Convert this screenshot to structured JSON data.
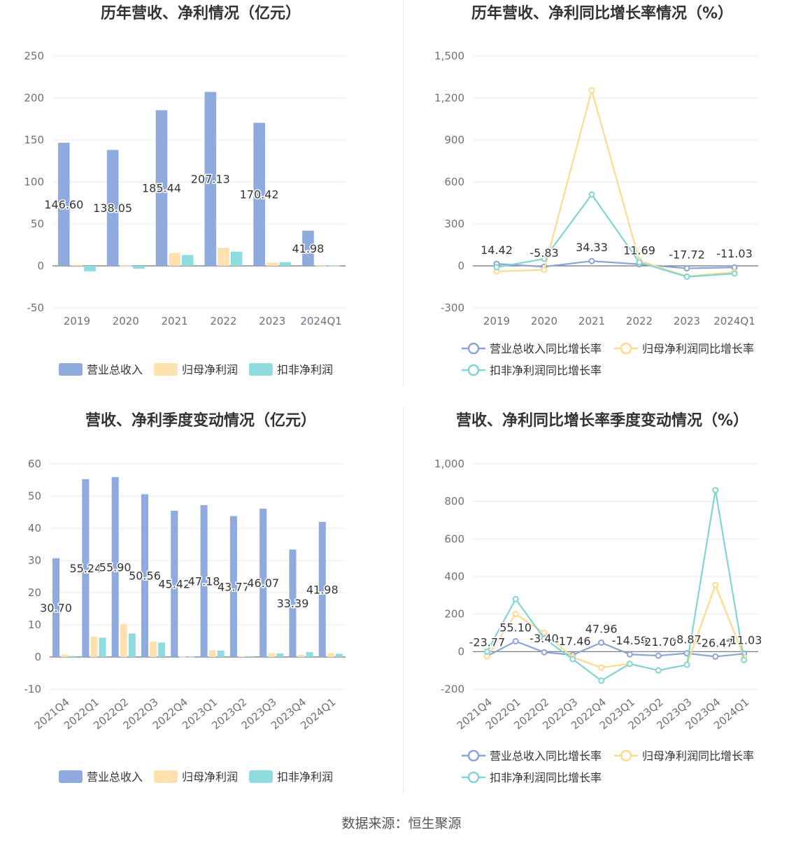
{
  "colors": {
    "revenue": "#8faadc",
    "parent_net": "#ffe1b0",
    "deducted_net": "#8fdcdf",
    "revenue_line": "#8ba3d8",
    "parent_line": "#ffd98c",
    "deducted_line": "#80d4d4",
    "grid": "#e8eaf0",
    "axis_text": "#6e7079",
    "title_text": "#333333",
    "label_text": "#333333"
  },
  "charts": [
    {
      "title": "历年营收、净利情况（亿元）",
      "type": "bar",
      "categories": [
        "2019",
        "2020",
        "2021",
        "2022",
        "2023",
        "2024Q1"
      ],
      "yticks": [
        "-50",
        "0",
        "50",
        "100",
        "150",
        "200",
        "250"
      ],
      "ylim": [
        -50,
        250
      ],
      "series": [
        {
          "name": "营业总收入",
          "values": [
            146.6,
            138.05,
            185.44,
            207.13,
            170.42,
            41.98
          ],
          "labels": [
            "146.60",
            "138.05",
            "185.44",
            "207.13",
            "170.42",
            "41.98"
          ]
        },
        {
          "name": "归母净利润",
          "values": [
            1.2,
            0.5,
            15.5,
            21.5,
            4.0,
            0.6
          ]
        },
        {
          "name": "扣非净利润",
          "values": [
            -6.5,
            -3.5,
            13.0,
            17.0,
            4.5,
            0.4
          ]
        }
      ]
    },
    {
      "title": "历年营收、净利同比增长率情况（%）",
      "type": "line",
      "categories": [
        "2019",
        "2020",
        "2021",
        "2022",
        "2023",
        "2024Q1"
      ],
      "yticks": [
        "-300",
        "0",
        "300",
        "600",
        "900",
        "1,200",
        "1,500"
      ],
      "ylim": [
        -300,
        1500
      ],
      "series": [
        {
          "name": "营业总收入同比增长率",
          "values": [
            14.42,
            -5.83,
            34.33,
            11.69,
            -17.72,
            -11.03
          ],
          "labels": [
            "14.42",
            "-5.83",
            "34.33",
            "11.69",
            "-17.72",
            "-11.03"
          ]
        },
        {
          "name": "归母净利润同比增长率",
          "values": [
            -40,
            -28,
            1255,
            38,
            -75,
            -45
          ]
        },
        {
          "name": "扣非净利润同比增长率",
          "values": [
            -10,
            50,
            510,
            25,
            -78,
            -55
          ]
        }
      ]
    },
    {
      "title": "营收、净利季度变动情况（亿元）",
      "type": "bar",
      "categories": [
        "2021Q4",
        "2022Q1",
        "2022Q2",
        "2022Q3",
        "2022Q4",
        "2023Q1",
        "2023Q2",
        "2023Q3",
        "2023Q4",
        "2024Q1"
      ],
      "yticks": [
        "-10",
        "0",
        "10",
        "20",
        "30",
        "40",
        "50",
        "60"
      ],
      "ylim": [
        -10,
        60
      ],
      "series": [
        {
          "name": "营业总收入",
          "values": [
            30.7,
            55.24,
            55.9,
            50.56,
            45.42,
            47.18,
            43.77,
            46.07,
            33.39,
            41.98
          ],
          "labels": [
            "30.70",
            "55.24",
            "55.90",
            "50.56",
            "45.42",
            "47.18",
            "43.77",
            "46.07",
            "33.39",
            "41.98"
          ]
        },
        {
          "name": "归母净利润",
          "values": [
            0.8,
            6.3,
            10.3,
            4.8,
            0.1,
            2.1,
            0.2,
            1.2,
            0.7,
            1.2
          ]
        },
        {
          "name": "扣非净利润",
          "values": [
            0.3,
            6.0,
            7.3,
            4.5,
            0.1,
            2.0,
            0.2,
            1.1,
            1.5,
            1.0
          ]
        }
      ]
    },
    {
      "title": "营收、净利同比增长率季度变动情况（%）",
      "type": "line",
      "categories": [
        "2021Q4",
        "2022Q1",
        "2022Q2",
        "2022Q3",
        "2022Q4",
        "2023Q1",
        "2023Q2",
        "2023Q3",
        "2023Q4",
        "2024Q1"
      ],
      "yticks": [
        "-200",
        "0",
        "200",
        "400",
        "600",
        "800",
        "1,000"
      ],
      "ylim": [
        -200,
        1000
      ],
      "series": [
        {
          "name": "营业总收入同比增长率",
          "values": [
            -23.77,
            55.1,
            -3.4,
            -17.46,
            47.96,
            -14.59,
            -21.7,
            -8.87,
            -26.47,
            -11.03
          ],
          "labels": [
            "-23.77",
            "55.10",
            "-3.40",
            "-17.46",
            "47.96",
            "-14.59",
            "-21.70",
            "-8.87",
            "-26.47",
            "-11.03"
          ]
        },
        {
          "name": "归母净利润同比增长率",
          "values": [
            -25,
            200,
            100,
            -30,
            -85,
            -65,
            -100,
            -70,
            355,
            -30
          ]
        },
        {
          "name": "扣非净利润同比增长率",
          "values": [
            0,
            280,
            70,
            -40,
            -155,
            -65,
            -100,
            -70,
            860,
            -45
          ]
        }
      ]
    }
  ],
  "source": "数据来源：恒生聚源"
}
